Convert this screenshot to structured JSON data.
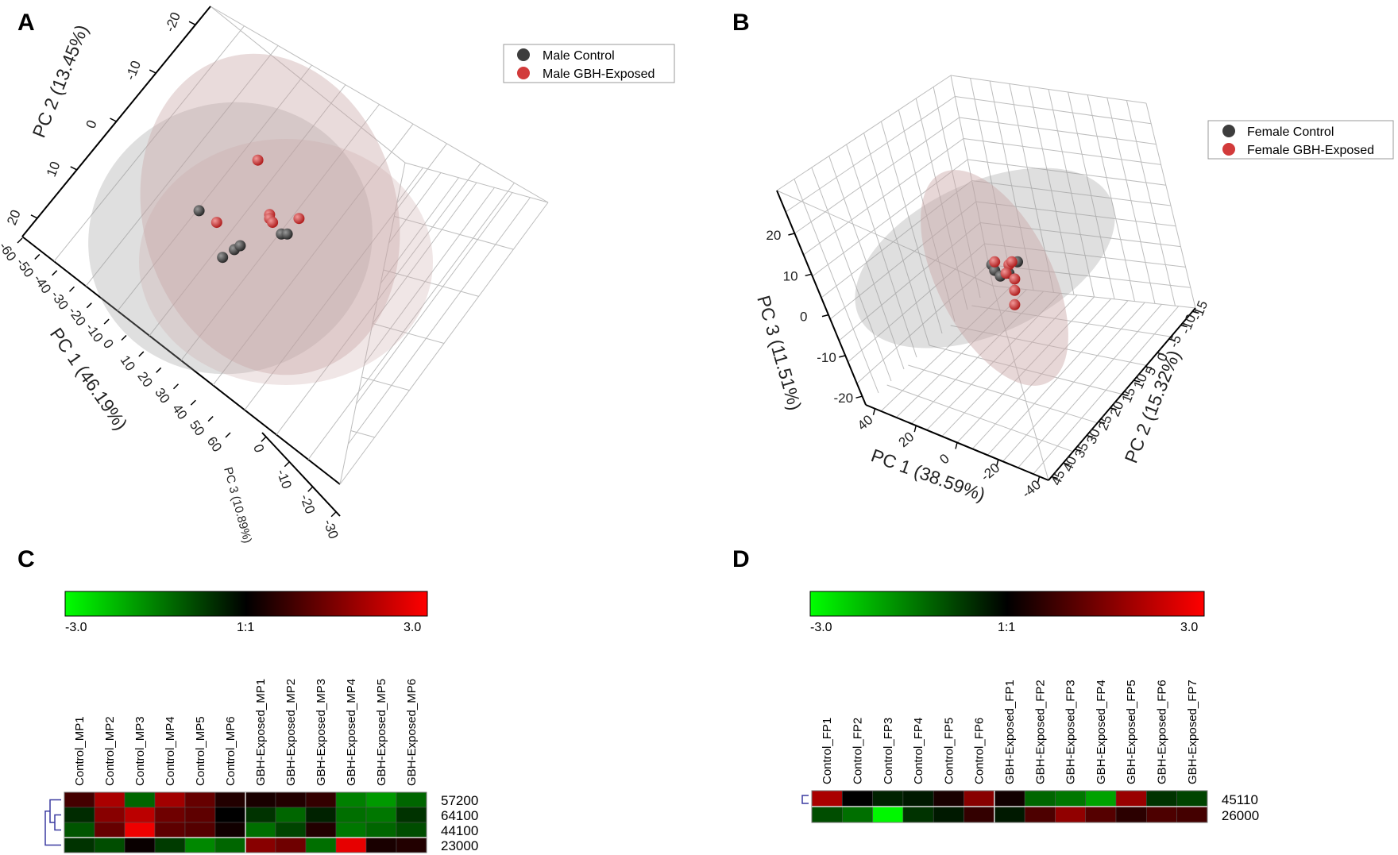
{
  "panels": {
    "A": "A",
    "B": "B",
    "C": "C",
    "D": "D"
  },
  "colors": {
    "control": "#3d3d3d",
    "exposed": "#d23a3a",
    "ellipse_grey": "#9a9a9a",
    "ellipse_pink": "#c9a6a6",
    "heat_low": "#00ff00",
    "heat_mid": "#000000",
    "heat_high": "#ff0000",
    "dendrogram": "#3a3aa0"
  },
  "chart_data": [
    {
      "id": "A",
      "type": "scatter",
      "title": "",
      "mode": "3d-pca",
      "legend": {
        "position": "top-right",
        "entries": [
          "Male Control",
          "Male GBH-Exposed"
        ]
      },
      "axes": {
        "pc1": {
          "label": "PC 1 (46.19%)",
          "ticks": [
            "-60",
            "-50",
            "-40",
            "-30",
            "-20",
            "-10",
            "0",
            "10",
            "20",
            "30",
            "40",
            "50",
            "60"
          ]
        },
        "pc2": {
          "label": "PC 2 (13.45%)",
          "ticks": [
            "-20",
            "-10",
            "0",
            "10",
            "20"
          ]
        },
        "pc3": {
          "label": "PC 3 (10.89%)",
          "ticks": [
            "0",
            "-10",
            "-20",
            "-30"
          ]
        }
      },
      "series": [
        {
          "name": "Male Control",
          "points": [
            {
              "pc1": -22,
              "pc2": 4
            },
            {
              "pc1": -14,
              "pc2": -8
            },
            {
              "pc1": -10,
              "pc2": -6
            },
            {
              "pc1": -8,
              "pc2": -5
            },
            {
              "pc1": 6,
              "pc2": -2
            },
            {
              "pc1": 8,
              "pc2": -2
            }
          ]
        },
        {
          "name": "Male GBH-Exposed",
          "points": [
            {
              "pc1": -2,
              "pc2": 17
            },
            {
              "pc1": -16,
              "pc2": 1
            },
            {
              "pc1": 2,
              "pc2": 3
            },
            {
              "pc1": 2,
              "pc2": 2
            },
            {
              "pc1": 3,
              "pc2": 1
            },
            {
              "pc1": 12,
              "pc2": 2
            }
          ]
        }
      ]
    },
    {
      "id": "B",
      "type": "scatter",
      "title": "",
      "mode": "3d-pca",
      "legend": {
        "position": "top-right",
        "entries": [
          "Female Control",
          "Female GBH-Exposed"
        ]
      },
      "axes": {
        "pc1": {
          "label": "PC 1 (38.59%)",
          "ticks": [
            "40",
            "20",
            "0",
            "-20",
            "-40"
          ]
        },
        "pc2": {
          "label": "PC 2 (15.32%)",
          "ticks": [
            "-15",
            "-10",
            "-5",
            "0",
            "5",
            "10",
            "15",
            "20",
            "25",
            "30",
            "35",
            "40",
            "45"
          ]
        },
        "pc3": {
          "label": "PC 3 (11.51%)",
          "ticks": [
            "20",
            "10",
            "0",
            "-10",
            "-20"
          ]
        }
      },
      "series": [
        {
          "name": "Female Control",
          "points": [
            {
              "pc1": -4,
              "pc3": 6
            },
            {
              "pc1": -3,
              "pc3": 4
            },
            {
              "pc1": -1,
              "pc3": 2
            },
            {
              "pc1": 2,
              "pc3": 3
            },
            {
              "pc1": 5,
              "pc3": 7
            }
          ]
        },
        {
          "name": "Female GBH-Exposed",
          "points": [
            {
              "pc1": -3,
              "pc3": 7
            },
            {
              "pc1": 2,
              "pc3": 6
            },
            {
              "pc1": 3,
              "pc3": 7
            },
            {
              "pc1": 1,
              "pc3": 3
            },
            {
              "pc1": 4,
              "pc3": 1
            },
            {
              "pc1": 4,
              "pc3": -3
            },
            {
              "pc1": 4,
              "pc3": -8
            }
          ]
        }
      ]
    },
    {
      "id": "C",
      "type": "heatmap",
      "colorbar": {
        "min_label": "-3.0",
        "mid_label": "1:1",
        "max_label": "3.0",
        "range": [
          -3,
          3
        ]
      },
      "columns": [
        "Control_MP1",
        "Control_MP2",
        "Control_MP3",
        "Control_MP4",
        "Control_MP5",
        "Control_MP6",
        "GBH-Exposed_MP1",
        "GBH-Exposed_MP2",
        "GBH-Exposed_MP3",
        "GBH-Exposed_MP4",
        "GBH-Exposed_MP5",
        "GBH-Exposed_MP6"
      ],
      "rows": [
        "57200",
        "64100",
        "44100",
        "23000"
      ],
      "values": [
        [
          0.8,
          2.0,
          -1.2,
          1.9,
          1.2,
          0.4,
          0.3,
          0.4,
          0.6,
          -1.5,
          -1.8,
          -1.2
        ],
        [
          -0.5,
          1.6,
          2.2,
          1.3,
          1.1,
          0.0,
          -0.6,
          -1.2,
          -0.4,
          -1.3,
          -1.4,
          -0.6
        ],
        [
          -1.0,
          1.2,
          2.8,
          1.1,
          1.0,
          0.2,
          -1.3,
          -0.8,
          0.4,
          -1.4,
          -1.2,
          -0.9
        ],
        [
          -0.6,
          -0.9,
          0.1,
          -0.7,
          -1.6,
          -1.2,
          1.6,
          1.3,
          -1.3,
          2.7,
          0.3,
          0.4
        ]
      ],
      "dendrogram_side": "left"
    },
    {
      "id": "D",
      "type": "heatmap",
      "colorbar": {
        "min_label": "-3.0",
        "mid_label": "1:1",
        "max_label": "3.0",
        "range": [
          -3,
          3
        ]
      },
      "columns": [
        "Control_FP1",
        "Control_FP2",
        "Control_FP3",
        "Control_FP4",
        "Control_FP5",
        "Control_FP6",
        "GBH-Exposed_FP1",
        "GBH-Exposed_FP2",
        "GBH-Exposed_FP3",
        "GBH-Exposed_FP4",
        "GBH-Exposed_FP5",
        "GBH-Exposed_FP6",
        "GBH-Exposed_FP7"
      ],
      "rows": [
        "45110",
        "26000"
      ],
      "values": [
        [
          2.0,
          0.0,
          -0.4,
          -0.3,
          0.3,
          1.6,
          0.2,
          -1.2,
          -1.4,
          -1.9,
          1.8,
          -0.6,
          -0.8
        ],
        [
          -0.9,
          -1.3,
          -2.9,
          -0.6,
          -0.3,
          0.6,
          -0.3,
          0.9,
          1.7,
          1.0,
          0.5,
          0.9,
          0.8
        ]
      ],
      "dendrogram_side": "left"
    }
  ]
}
